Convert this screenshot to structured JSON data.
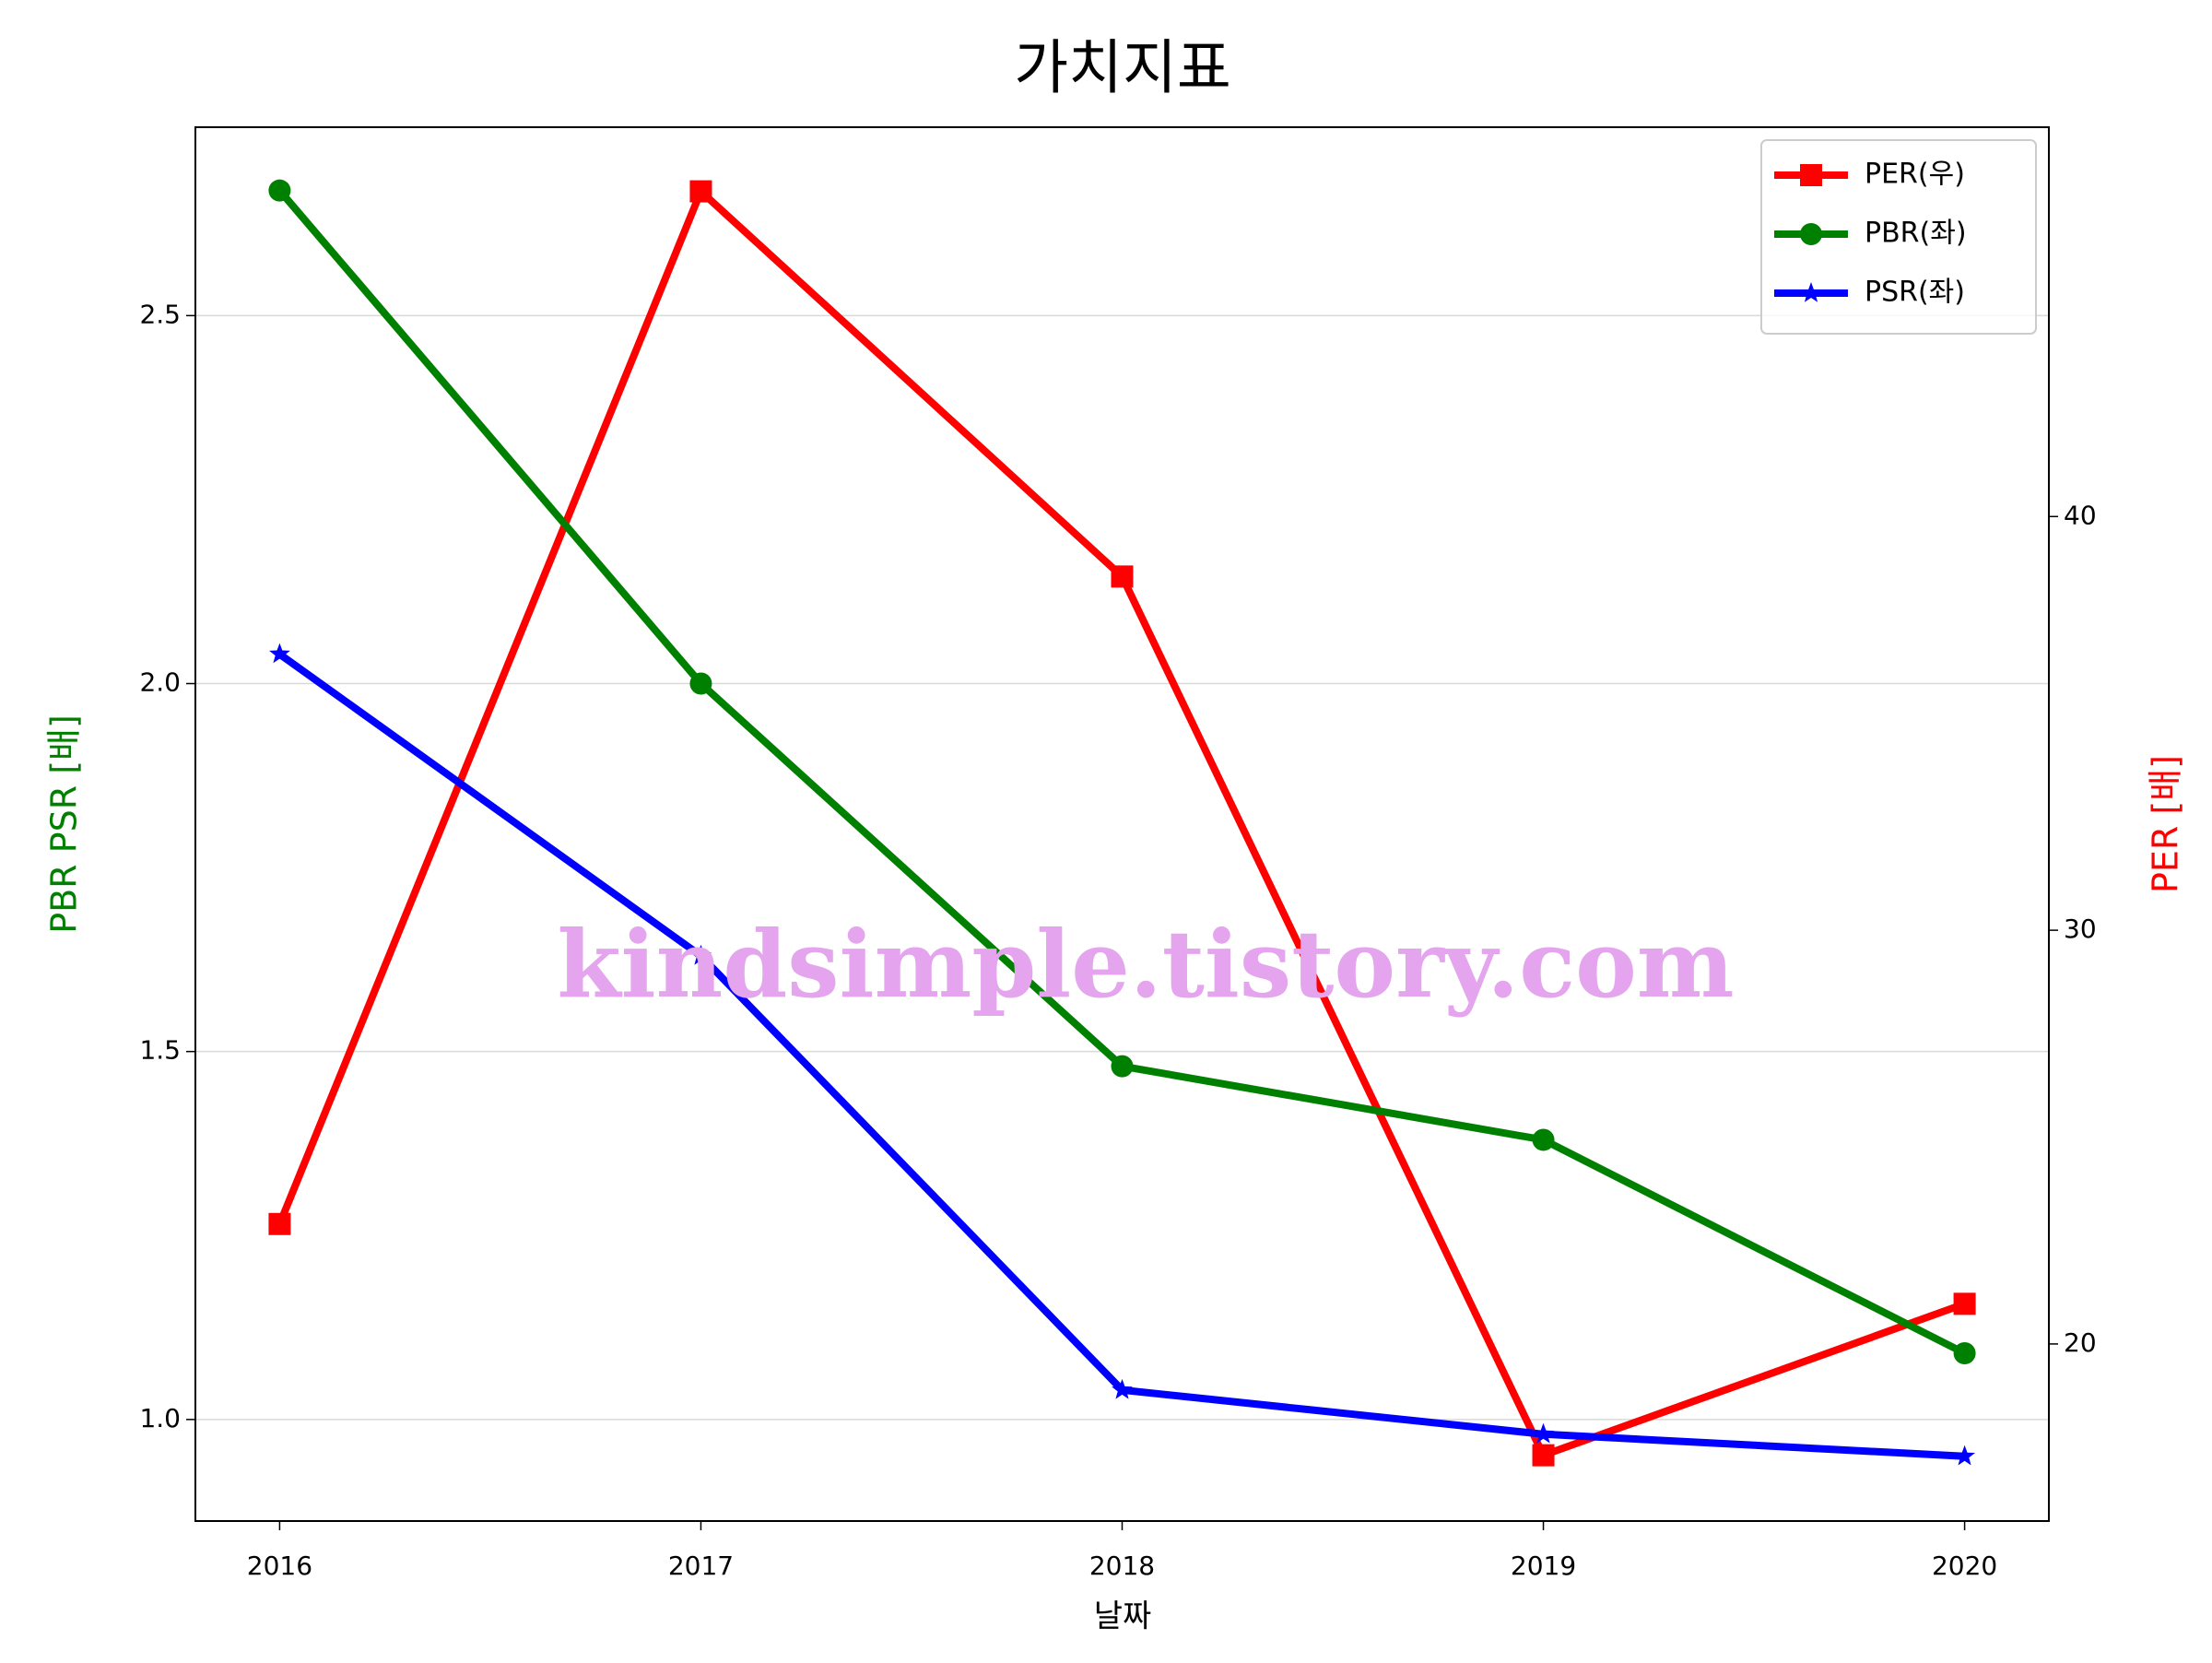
{
  "chart_data": {
    "type": "line",
    "title": "가치지표",
    "xlabel": "날짜",
    "ylabel": "PBR PSR [배]",
    "y2label": "PER [배]",
    "ylabel_color": "green",
    "y2label_color": "red",
    "annotation": "kindsimple.tistory.com",
    "annotation_color": "#e4a4ee",
    "x": [
      2016,
      2017,
      2018,
      2019,
      2020
    ],
    "xlim": [
      2015.8,
      2020.2
    ],
    "xticks": [
      2016,
      2017,
      2018,
      2019,
      2020
    ],
    "ylim": [
      0.862,
      2.756
    ],
    "yticks": [
      {
        "value": 1.0,
        "label": "1.0"
      },
      1.5,
      {
        "value": 2.0,
        "label": "2.0"
      },
      2.5
    ],
    "y2lim": [
      15.72,
      49.41
    ],
    "y2ticks": [
      20,
      30,
      40
    ],
    "grid": true,
    "legend": "upper right",
    "series": [
      {
        "name": "PER(우)",
        "color": "#ff0000",
        "marker": "square",
        "axis": "y2",
        "values": [
          22.9,
          47.86,
          38.55,
          17.31,
          20.97
        ]
      },
      {
        "name": "PBR(좌)",
        "color": "#008000",
        "marker": "circle",
        "axis": "y",
        "values": [
          2.67,
          2.0,
          1.48,
          1.38,
          1.09
        ]
      },
      {
        "name": "PSR(좌)",
        "color": "#0000ff",
        "marker": "star",
        "axis": "y",
        "values": [
          2.04,
          1.63,
          1.04,
          0.98,
          0.95
        ]
      }
    ]
  }
}
